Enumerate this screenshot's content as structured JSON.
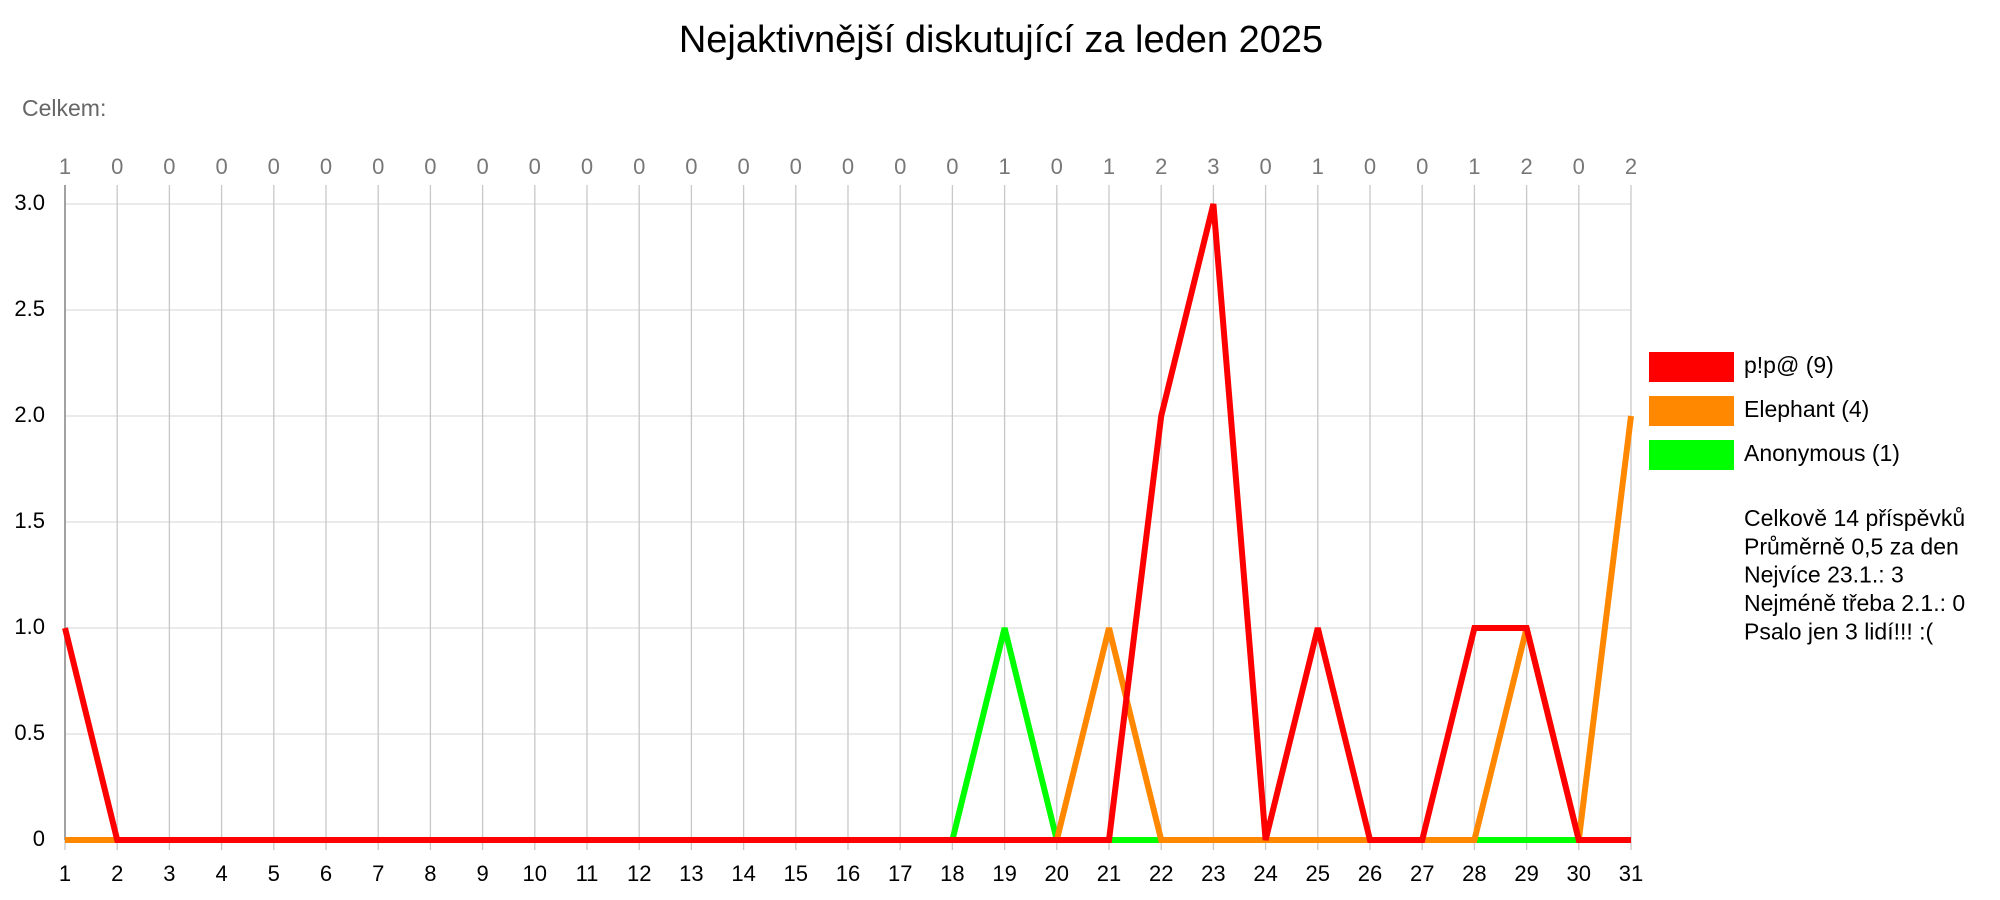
{
  "chart_data": {
    "type": "line",
    "title": "Nejaktivnější diskutující za leden 2025",
    "subtitle": "Celkem:",
    "x": [
      1,
      2,
      3,
      4,
      5,
      6,
      7,
      8,
      9,
      10,
      11,
      12,
      13,
      14,
      15,
      16,
      17,
      18,
      19,
      20,
      21,
      22,
      23,
      24,
      25,
      26,
      27,
      28,
      29,
      30,
      31
    ],
    "xlim": [
      1,
      31
    ],
    "totals": [
      1,
      0,
      0,
      0,
      0,
      0,
      0,
      0,
      0,
      0,
      0,
      0,
      0,
      0,
      0,
      0,
      0,
      0,
      1,
      0,
      1,
      2,
      3,
      0,
      1,
      0,
      0,
      1,
      2,
      0,
      2
    ],
    "series": [
      {
        "name": "p!p@ (9)",
        "color": "#ff0000",
        "values": [
          1,
          0,
          0,
          0,
          0,
          0,
          0,
          0,
          0,
          0,
          0,
          0,
          0,
          0,
          0,
          0,
          0,
          0,
          0,
          0,
          0,
          2,
          3,
          0,
          1,
          0,
          0,
          1,
          1,
          0,
          0
        ]
      },
      {
        "name": "Elephant (4)",
        "color": "#ff8800",
        "values": [
          0,
          0,
          0,
          0,
          0,
          0,
          0,
          0,
          0,
          0,
          0,
          0,
          0,
          0,
          0,
          0,
          0,
          0,
          0,
          0,
          1,
          0,
          0,
          0,
          0,
          0,
          0,
          0,
          1,
          0,
          2
        ]
      },
      {
        "name": "Anonymous (1)",
        "color": "#00ff00",
        "values": [
          0,
          0,
          0,
          0,
          0,
          0,
          0,
          0,
          0,
          0,
          0,
          0,
          0,
          0,
          0,
          0,
          0,
          0,
          1,
          0,
          0,
          0,
          0,
          0,
          0,
          0,
          0,
          0,
          0,
          0,
          0
        ]
      }
    ],
    "ylim": [
      0,
      3
    ],
    "yticks": [
      0,
      0.5,
      {
        "value": 1,
        "label": "1.0"
      },
      1.5,
      {
        "value": 2,
        "label": "2.0"
      },
      2.5,
      {
        "value": 3,
        "label": "3.0"
      }
    ],
    "grid": true,
    "legend": "right",
    "stats": [
      "Celkově 14 příspěvků",
      "Průměrně 0,5 za den",
      "Nejvíce 23.1.: 3",
      "Nejméně třeba 2.1.: 0",
      "Psalo jen 3 lidí!!! :("
    ]
  }
}
